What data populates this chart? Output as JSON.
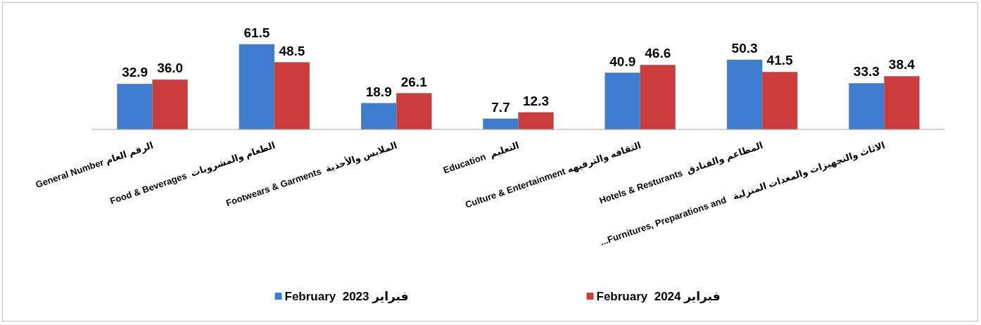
{
  "chart_data": {
    "type": "bar",
    "categories": [
      "General Number الرقم العام",
      "Food & Beverages  الطعام والمشروبات",
      "Footwears & Garments  الملابس والأحذية",
      "Education  التعليم",
      "Culture & Entertainment الثقافه والترفيهه",
      "Hotels & Resturants  المطاعم والفنادق",
      "...Furnitures, Preparations and   الاثاث والتجهيزات والمعدات المنزلية"
    ],
    "series": [
      {
        "name": "February  2023 فبراير",
        "color": "#3d7ccf",
        "values": [
          32.9,
          61.5,
          18.9,
          7.7,
          40.9,
          50.3,
          33.3
        ],
        "value_labels": [
          "32.9",
          "61.5",
          "18.9",
          "7.7",
          "40.9",
          "50.3",
          "33.3"
        ]
      },
      {
        "name": "February  2024 فبراير",
        "color": "#cc3c3c",
        "values": [
          36.0,
          48.5,
          26.1,
          12.3,
          46.6,
          41.5,
          38.4
        ],
        "value_labels": [
          "36.0",
          "48.5",
          "26.1",
          "12.3",
          "46.6",
          "41.5",
          "38.4"
        ]
      }
    ],
    "legend": "bottom"
  }
}
